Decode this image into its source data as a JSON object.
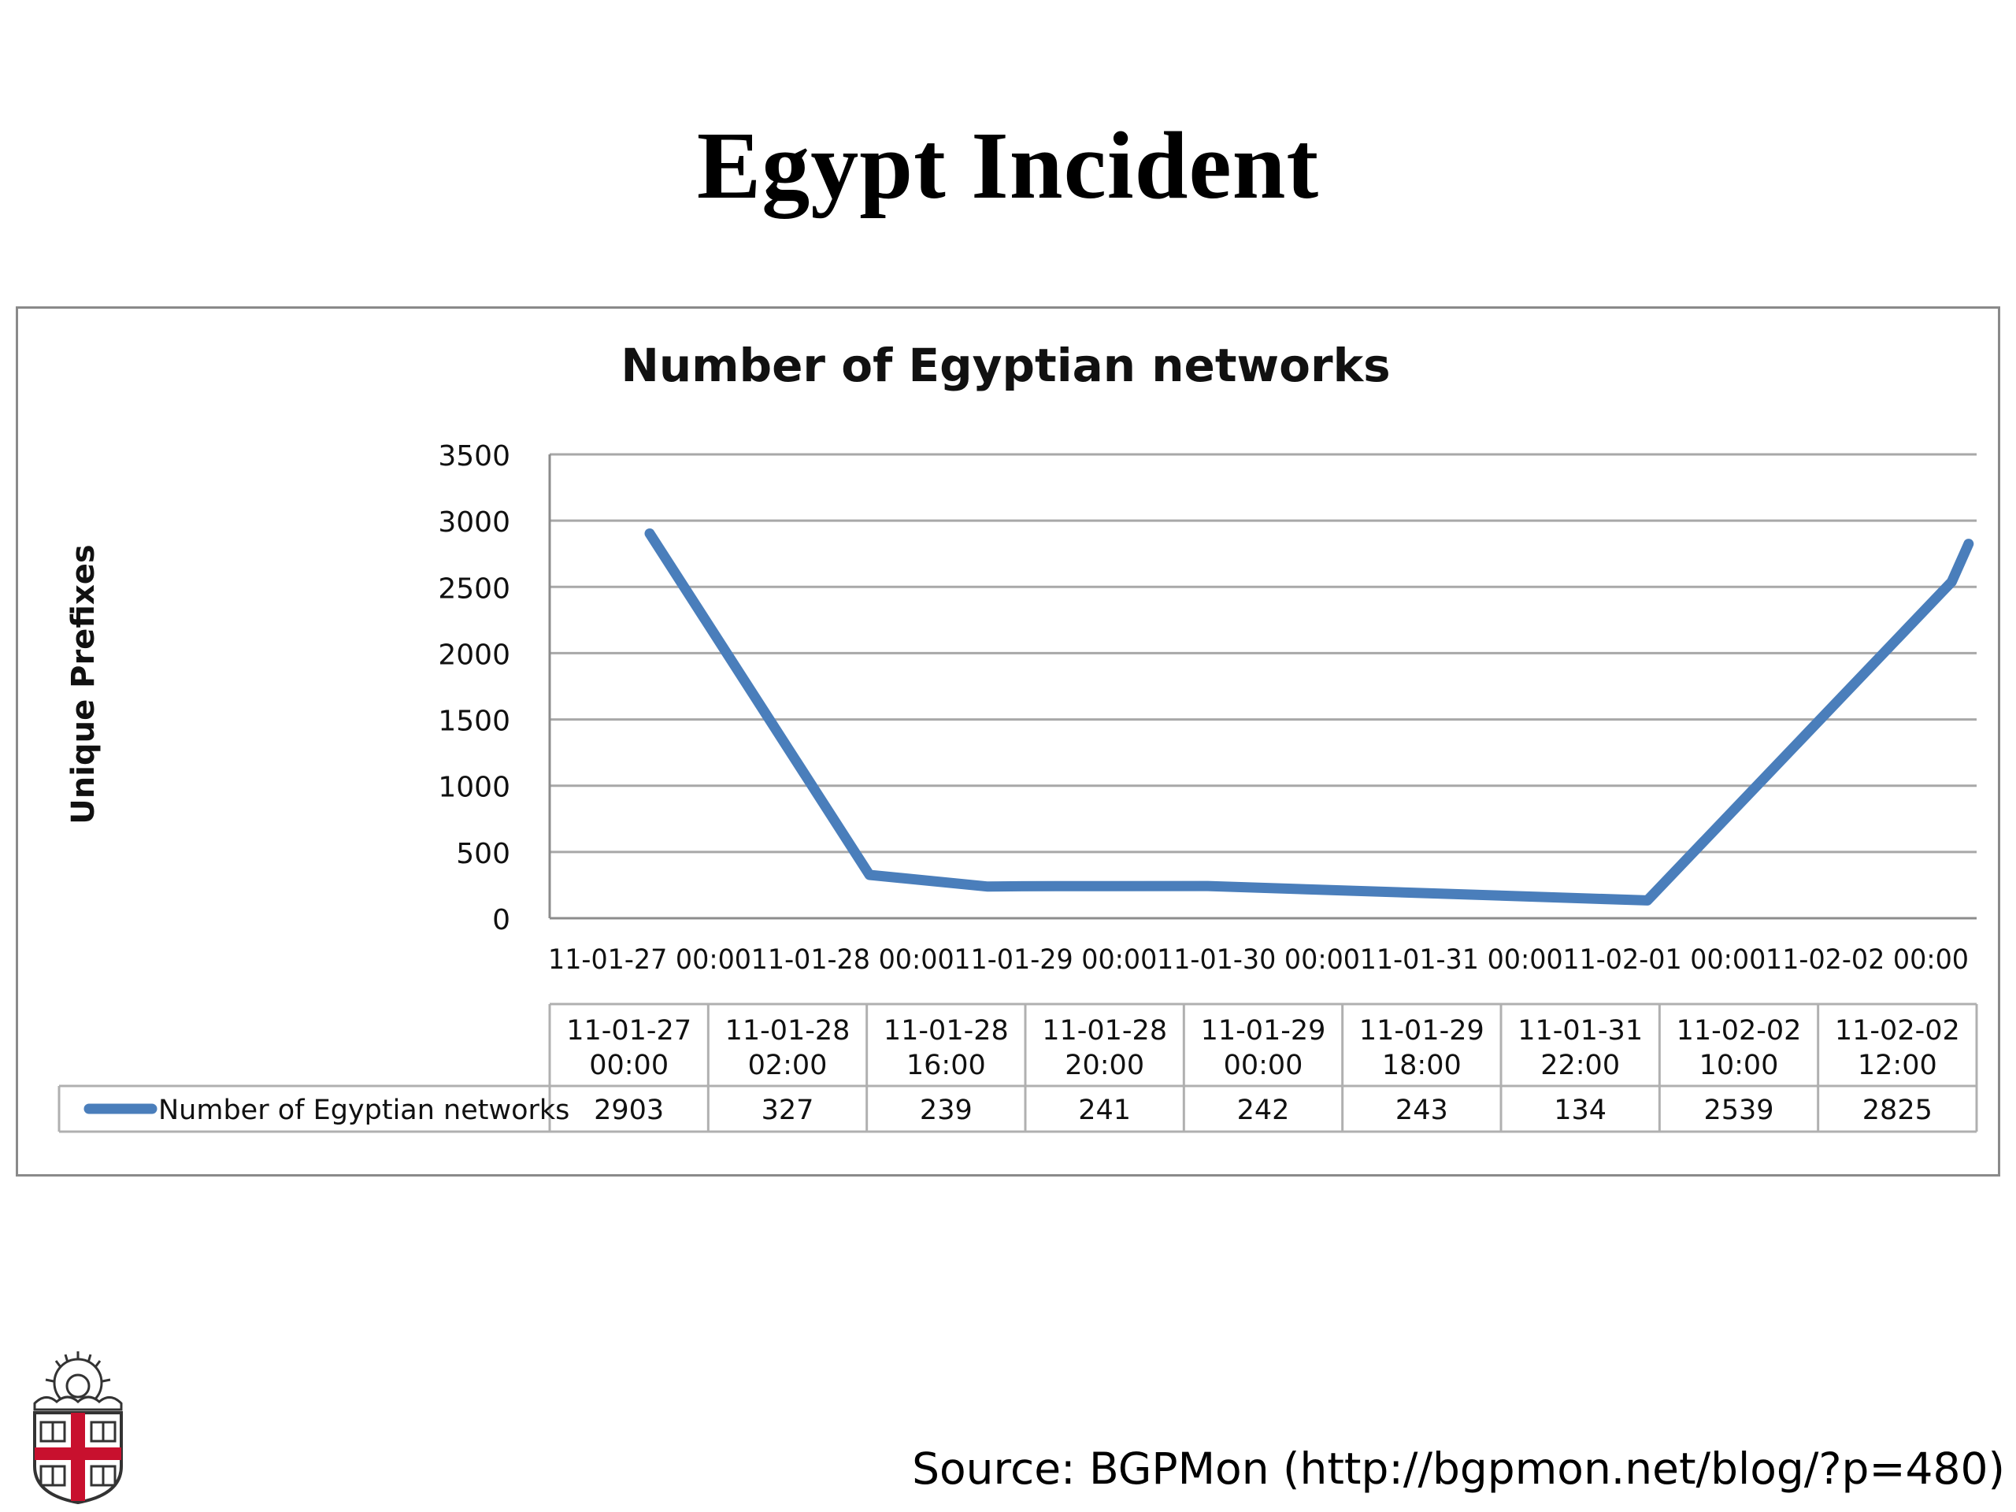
{
  "slide": {
    "title": "Egypt Incident",
    "source": "Source: BGPMon (http://bgpmon.net/blog/?p=480)"
  },
  "chart_data": {
    "type": "line",
    "title": "Number of Egyptian networks",
    "ylabel": "Unique Prefixes",
    "xlabel": "",
    "ylim": [
      0,
      3500
    ],
    "yticks": [
      0,
      500,
      1000,
      1500,
      2000,
      2500,
      3000,
      3500
    ],
    "grid": true,
    "xaxis_ticks": [
      "11-01-27 00:00",
      "11-01-28 00:00",
      "11-01-29 00:00",
      "11-01-30 00:00",
      "11-01-31 00:00",
      "11-02-01 00:00",
      "11-02-02 00:00"
    ],
    "x": [
      "11-01-27 00:00",
      "11-01-28 02:00",
      "11-01-28 16:00",
      "11-01-28 20:00",
      "11-01-29 00:00",
      "11-01-29 18:00",
      "11-01-31 22:00",
      "11-02-02 10:00",
      "11-02-02 12:00"
    ],
    "series": [
      {
        "name": "Number of Egyptian networks",
        "color": "#4a7ebb",
        "values": [
          2903,
          327,
          239,
          241,
          242,
          243,
          134,
          2539,
          2825
        ]
      }
    ],
    "data_table": true,
    "legend_placement": "bottom-left (in data table)"
  }
}
